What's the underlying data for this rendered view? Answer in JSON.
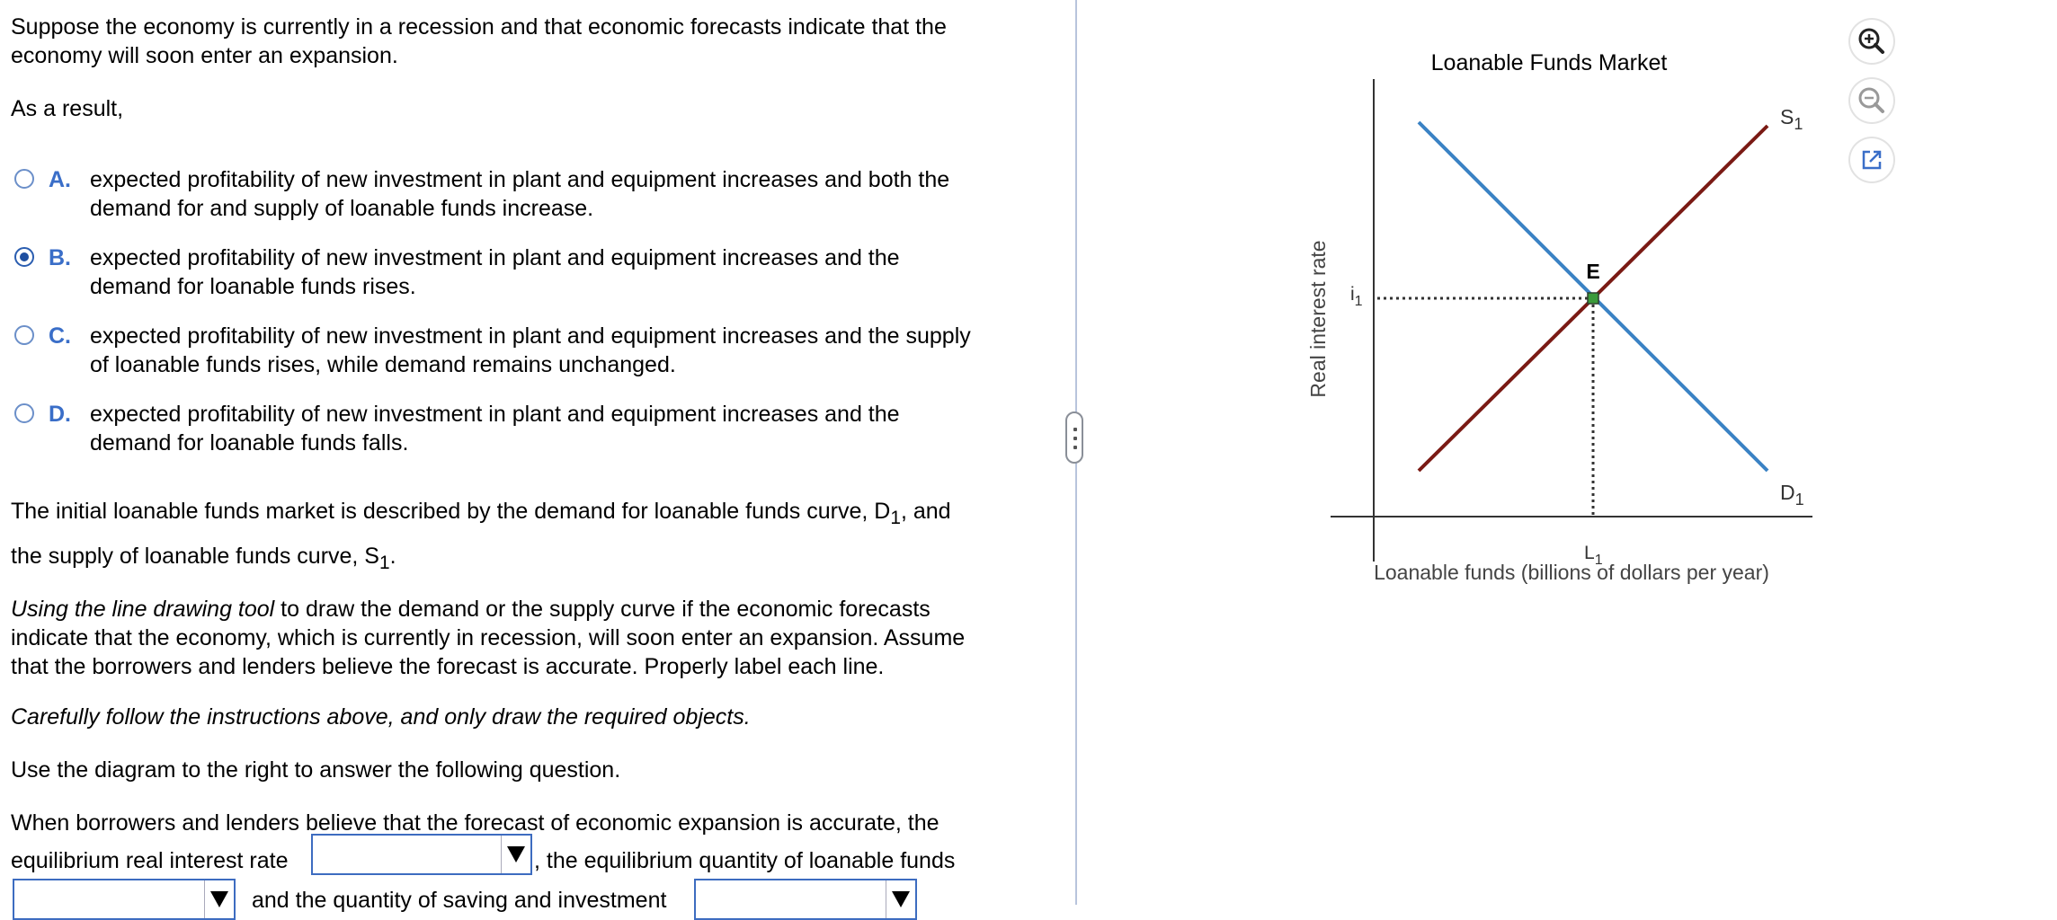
{
  "question": {
    "line1": "Suppose the economy is currently in a recession and that economic forecasts indicate that the",
    "line2": "economy will soon enter an expansion.",
    "as_result": "As a result,"
  },
  "options": [
    {
      "letter": "A.",
      "line1": "expected profitability of new investment in plant and equipment increases and both the",
      "line2": "demand for and supply of loanable funds increase.",
      "selected": false
    },
    {
      "letter": "B.",
      "line1": "expected profitability of new investment in plant and equipment increases and the",
      "line2": "demand for loanable funds rises.",
      "selected": true
    },
    {
      "letter": "C.",
      "line1": "expected profitability of new investment in plant and equipment increases and the supply",
      "line2": "of loanable funds rises, while demand remains unchanged.",
      "selected": false
    },
    {
      "letter": "D.",
      "line1": "expected profitability of new investment in plant and equipment increases and the",
      "line2": "demand for loanable funds falls.",
      "selected": false
    }
  ],
  "description": {
    "l1_pre": "The initial loanable funds market is described by the demand for loanable funds curve, D",
    "l1_sub": "1",
    "l1_post": ", and",
    "l2_pre": "the supply of loanable funds curve, S",
    "l2_sub": "1",
    "l2_post": "."
  },
  "instructions": {
    "italic_lead": "Using the line drawing tool",
    "line1_rest": " to draw the demand or the supply curve if the economic forecasts",
    "line2": "indicate that the economy, which is currently in recession, will soon enter an expansion. Assume",
    "line3": "that the borrowers and lenders believe the forecast is accurate. Properly label each line.",
    "careful": "Carefully follow the instructions above, and only draw the required objects.",
    "use_diagram": "Use the diagram to the right to answer the following question."
  },
  "fill_in": {
    "line1": "When borrowers and lenders believe that the forecast of economic expansion is accurate, the",
    "label_rate": "equilibrium real interest rate",
    "label_qty": ", the equilibrium quantity of loanable funds",
    "label_saving": "and the quantity of saving and investment",
    "select_rate_value": "",
    "select_qty_value": "",
    "select_saving_value": ""
  },
  "graph": {
    "title": "Loanable Funds Market",
    "y_axis_label": "Real interest rate",
    "x_axis_label": "Loanable funds (billions of dollars per year)",
    "supply_label": "S",
    "supply_sub": "1",
    "demand_label": "D",
    "demand_sub": "1",
    "equilibrium_label": "E",
    "i_label": "i",
    "i_sub": "1",
    "l_label": "L",
    "l_sub": "1",
    "supply_color": "#7a1a14",
    "demand_color": "#3a82c4",
    "equilibrium_color": "#3a9a3a"
  },
  "tools": {
    "zoom_in": "zoom-in-icon",
    "zoom_out": "zoom-out-icon",
    "popout": "popout-icon"
  }
}
